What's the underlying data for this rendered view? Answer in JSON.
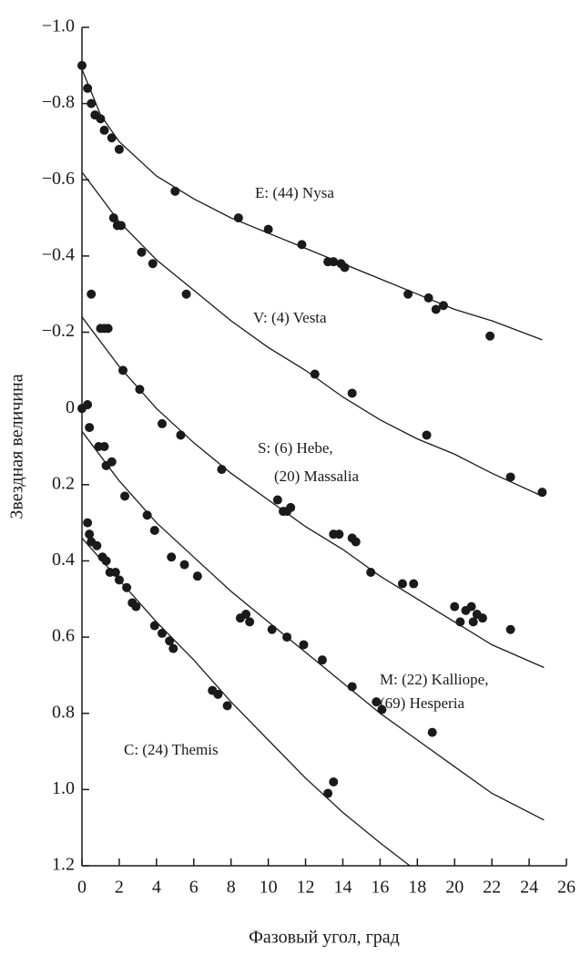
{
  "chart_data": {
    "type": "scatter",
    "y_label": "Звездная величина",
    "x_label": "Фазовый угол, град",
    "y_inverted": true,
    "color": "#1a1a1a",
    "xlim": [
      0,
      26
    ],
    "xticks": [
      0,
      2,
      4,
      6,
      8,
      10,
      12,
      14,
      16,
      18,
      20,
      22,
      24,
      26
    ],
    "ylim": [
      -1.0,
      1.2
    ],
    "yticks": [
      {
        "value": -1.0,
        "label": "−1.0"
      },
      {
        "value": -0.8,
        "label": "−0.8"
      },
      {
        "value": -0.6,
        "label": "−0.6"
      },
      {
        "value": -0.4,
        "label": "−0.4"
      },
      {
        "value": -0.2,
        "label": "−0.2"
      },
      0,
      0.2,
      0.4,
      0.6,
      0.8,
      {
        "value": 1.0,
        "label": "1.0"
      },
      1.2
    ],
    "series": [
      {
        "name": [
          "E: (44) Nysa"
        ],
        "x": [
          0,
          0.3,
          0.5,
          0.7,
          1.0,
          1.2,
          1.6,
          2.0,
          5.0,
          8.4,
          10.0,
          11.8,
          13.2,
          13.5,
          13.9,
          14.1,
          17.5,
          18.6,
          19.0,
          19.4,
          21.9
        ],
        "values": [
          -0.9,
          -0.84,
          -0.8,
          -0.77,
          -0.76,
          -0.73,
          -0.71,
          -0.68,
          -0.57,
          -0.5,
          -0.47,
          -0.43,
          -0.385,
          -0.385,
          -0.38,
          -0.37,
          -0.3,
          -0.29,
          -0.26,
          -0.27,
          -0.19
        ],
        "fit": {
          "x": [
            0,
            1,
            2,
            4,
            6,
            8,
            10,
            12,
            14,
            16,
            18,
            20,
            22,
            24.7
          ],
          "values": [
            -0.89,
            -0.77,
            -0.7,
            -0.61,
            -0.55,
            -0.5,
            -0.46,
            -0.42,
            -0.38,
            -0.34,
            -0.3,
            -0.26,
            -0.23,
            -0.18
          ]
        }
      },
      {
        "name": [
          "V: (4) Vesta"
        ],
        "x": [
          1.7,
          1.9,
          2.1,
          3.2,
          3.8,
          5.6,
          12.5,
          14.5,
          18.5,
          23.0,
          24.7
        ],
        "values": [
          -0.5,
          -0.48,
          -0.48,
          -0.41,
          -0.38,
          -0.3,
          -0.09,
          -0.04,
          0.07,
          0.18,
          0.22
        ],
        "fit": {
          "x": [
            0,
            2,
            4,
            6,
            8,
            10,
            12,
            14,
            16,
            18,
            20,
            22,
            24.7
          ],
          "values": [
            -0.62,
            -0.49,
            -0.39,
            -0.31,
            -0.23,
            -0.16,
            -0.1,
            -0.03,
            0.03,
            0.08,
            0.12,
            0.17,
            0.23
          ]
        }
      },
      {
        "name": [
          "S: (6) Hebe,",
          "(20) Massalia"
        ],
        "x": [
          0,
          0.3,
          0.4,
          0.5,
          1.0,
          1.2,
          1.4,
          2.2,
          3.1,
          4.3,
          5.3,
          7.5,
          10.5,
          10.8,
          11.0,
          11.2,
          13.5,
          13.8,
          14.5,
          14.7,
          15.5,
          17.2,
          17.8,
          20.0,
          20.3,
          20.6,
          20.9,
          21.0,
          21.2,
          21.5,
          23.0
        ],
        "values": [
          0.0,
          -0.01,
          0.05,
          -0.3,
          -0.21,
          -0.21,
          -0.21,
          -0.1,
          -0.05,
          0.04,
          0.07,
          0.16,
          0.24,
          0.27,
          0.27,
          0.26,
          0.33,
          0.33,
          0.34,
          0.35,
          0.43,
          0.46,
          0.46,
          0.52,
          0.56,
          0.53,
          0.52,
          0.56,
          0.54,
          0.55,
          0.58
        ],
        "fit": {
          "x": [
            0,
            2,
            4,
            6,
            8,
            10,
            12,
            14,
            16,
            18,
            20,
            22,
            24.8
          ],
          "values": [
            -0.24,
            -0.11,
            0.0,
            0.09,
            0.17,
            0.24,
            0.31,
            0.37,
            0.44,
            0.5,
            0.56,
            0.62,
            0.68
          ]
        }
      },
      {
        "name": [
          "M: (22) Kalliope,",
          "(69) Hesperia"
        ],
        "x": [
          0.9,
          1.2,
          1.3,
          1.6,
          2.3,
          3.5,
          3.9,
          4.8,
          5.5,
          6.2,
          8.5,
          8.8,
          9.0,
          10.2,
          11.0,
          11.9,
          12.9,
          14.5,
          15.8,
          16.1,
          18.8
        ],
        "values": [
          0.1,
          0.1,
          0.15,
          0.14,
          0.23,
          0.28,
          0.32,
          0.39,
          0.41,
          0.44,
          0.55,
          0.54,
          0.56,
          0.58,
          0.6,
          0.62,
          0.66,
          0.73,
          0.77,
          0.79,
          0.85
        ],
        "fit": {
          "x": [
            0,
            2,
            4,
            6,
            8,
            10,
            12,
            14,
            16,
            18,
            20,
            22,
            24.8
          ],
          "values": [
            0.06,
            0.19,
            0.3,
            0.39,
            0.48,
            0.56,
            0.64,
            0.72,
            0.8,
            0.87,
            0.94,
            1.01,
            1.08
          ]
        }
      },
      {
        "name": [
          "C: (24) Themis"
        ],
        "x": [
          0.3,
          0.4,
          0.5,
          0.8,
          1.1,
          1.3,
          1.5,
          1.8,
          2.0,
          2.4,
          2.7,
          2.9,
          3.9,
          4.3,
          4.7,
          4.9,
          7.0,
          7.3,
          7.8,
          13.2,
          13.5
        ],
        "values": [
          0.3,
          0.33,
          0.35,
          0.36,
          0.39,
          0.4,
          0.43,
          0.43,
          0.45,
          0.47,
          0.51,
          0.52,
          0.57,
          0.59,
          0.61,
          0.63,
          0.74,
          0.75,
          0.78,
          1.01,
          0.98
        ],
        "fit": {
          "x": [
            0,
            2,
            4,
            6,
            8,
            10,
            12,
            14,
            16,
            17.6
          ],
          "values": [
            0.34,
            0.45,
            0.56,
            0.66,
            0.77,
            0.87,
            0.97,
            1.06,
            1.14,
            1.2
          ]
        }
      }
    ]
  }
}
